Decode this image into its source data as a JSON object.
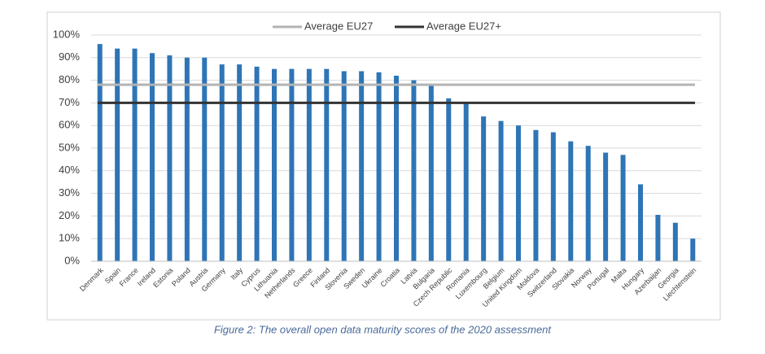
{
  "chart_data": {
    "type": "bar",
    "categories": [
      "Denmark",
      "Spain",
      "France",
      "Ireland",
      "Estonia",
      "Poland",
      "Austria",
      "Germany",
      "Italy",
      "Cyprus",
      "Lithuania",
      "Netherlands",
      "Greece",
      "Finland",
      "Slovenia",
      "Sweden",
      "Ukraine",
      "Croatia",
      "Latvia",
      "Bulgaria",
      "Czech Republic",
      "Romania",
      "Luxembourg",
      "Belgium",
      "United Kingdom",
      "Moldova",
      "Switzerland",
      "Slovakia",
      "Norway",
      "Portugal",
      "Malta",
      "Hungary",
      "Azerbaijan",
      "Georgia",
      "Liechtenstein"
    ],
    "values": [
      96,
      94,
      94,
      92,
      91,
      90,
      90,
      87,
      87,
      86,
      85,
      85,
      85,
      85,
      84,
      84,
      83.5,
      82,
      80,
      78,
      72,
      70,
      64,
      62,
      60,
      58,
      57,
      53,
      51,
      48,
      47,
      34,
      20.5,
      17,
      10
    ],
    "color": "#2e75b6",
    "reference_lines": [
      {
        "name": "Average EU27",
        "value": 78,
        "color": "#b3b3b3"
      },
      {
        "name": "Average EU27+",
        "value": 70,
        "color": "#333333"
      }
    ],
    "ylim": [
      0,
      100
    ],
    "yticks": [
      {
        "value": 0,
        "label": "0%"
      },
      {
        "value": 10,
        "label": "10%"
      },
      {
        "value": 20,
        "label": "20%"
      },
      {
        "value": 30,
        "label": "30%"
      },
      {
        "value": 40,
        "label": "40%"
      },
      {
        "value": 50,
        "label": "50%"
      },
      {
        "value": 60,
        "label": "60%"
      },
      {
        "value": 70,
        "label": "70%"
      },
      {
        "value": 80,
        "label": "80%"
      },
      {
        "value": 90,
        "label": "90%"
      },
      {
        "value": 100,
        "label": "100%"
      }
    ],
    "grid": true,
    "caption": "Figure 2: The overall open data maturity scores of the 2020 assessment"
  }
}
